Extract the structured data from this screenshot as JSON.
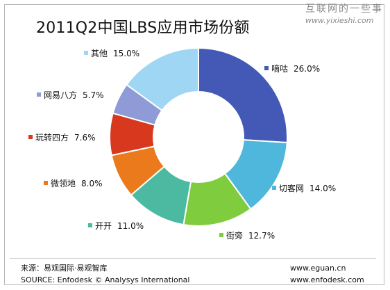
{
  "watermark": {
    "cn": "互联网的一些事",
    "url": "www.yixieshi.com"
  },
  "footer": {
    "source_cn": "来源：易观国际·易观智库",
    "source_en": "SOURCE: Enfodesk © Analysys International",
    "url1": "www.eguan.cn",
    "url2": "www.enfodesk.com"
  },
  "chart_data": {
    "type": "pie",
    "style": "donut",
    "title": "2011Q2中国LBS应用市场份额",
    "unit": "%",
    "slices": [
      {
        "name": "嘀咕",
        "value": 26.0,
        "label": "26.0%",
        "color": "#4459b5"
      },
      {
        "name": "切客网",
        "value": 14.0,
        "label": "14.0%",
        "color": "#4fb6dc"
      },
      {
        "name": "街旁",
        "value": 12.7,
        "label": "12.7%",
        "color": "#7fcc3e"
      },
      {
        "name": "开开",
        "value": 11.0,
        "label": "11.0%",
        "color": "#4cbaa0"
      },
      {
        "name": "微领地",
        "value": 8.0,
        "label": "8.0%",
        "color": "#ea7a1c"
      },
      {
        "name": "玩转四方",
        "value": 7.6,
        "label": "7.6%",
        "color": "#d8381e"
      },
      {
        "name": "网易八方",
        "value": 5.7,
        "label": "5.7%",
        "color": "#8f9bd6"
      },
      {
        "name": "其他",
        "value": 15.0,
        "label": "15.0%",
        "color": "#9ed6f3"
      }
    ],
    "legend_placement": "around"
  }
}
